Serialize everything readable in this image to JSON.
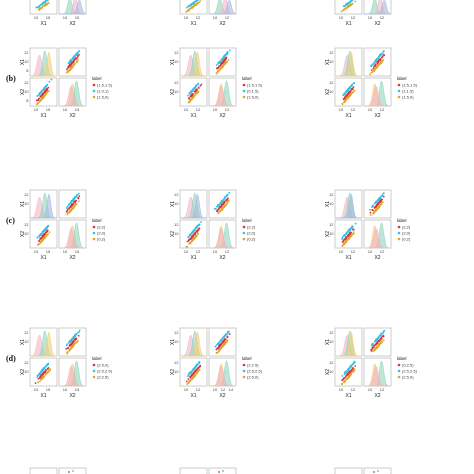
{
  "figure": {
    "colors": {
      "series1": "#f2a0b0",
      "series2": "#54c7a0",
      "series3": "#e6b53b",
      "point1": "#d8353f",
      "point2": "#33c0e8",
      "point3": "#e0a726",
      "dens1": "#f4b4c4",
      "dens2": "#8fd6bd",
      "dens3": "#f2cf7a",
      "dens4": "#a8b8e0"
    },
    "row_labels": [
      "(b)",
      "(c)",
      "(d)"
    ],
    "axis_var_labels": [
      "X1",
      "X2"
    ]
  },
  "chart_data": [
    {
      "type": "scatter",
      "row": "top-partial",
      "panels": [
        {
          "xlabel_left": "X1",
          "xlabel_right": "X2",
          "ticks_left": [
            "10",
            "15"
          ],
          "ticks_right": [
            "10",
            "15"
          ]
        },
        {
          "xlabel_left": "X1",
          "xlabel_right": "X2",
          "ticks_left": [
            "10",
            "12"
          ],
          "ticks_right": [
            "10",
            "12"
          ]
        },
        {
          "xlabel_left": "X1",
          "xlabel_right": "X2",
          "ticks_left": [
            "10",
            "12"
          ],
          "ticks_right": [
            "10",
            "12"
          ]
        }
      ]
    },
    {
      "type": "scatter",
      "row_label": "(b)",
      "legend_title": "label",
      "panels": [
        {
          "legend": [
            "(1.5,1.5)",
            "(1.0,1)",
            "(1.5,0)"
          ],
          "yticks": [
            "12",
            "10",
            "8"
          ],
          "xticks_left": [
            "10",
            "15"
          ],
          "xticks_right": [
            "10",
            "15"
          ],
          "xlabel_left": "X1",
          "xlabel_right": "X2"
        },
        {
          "legend": [
            "(1.5,1.5)",
            "(0.1.5)",
            "(1.5,0)"
          ],
          "yticks": [
            "12",
            "10"
          ],
          "xticks_left": [
            "10",
            "12"
          ],
          "xticks_right": [
            "10",
            "12"
          ],
          "xlabel_left": "X1",
          "xlabel_right": "X2"
        },
        {
          "legend": [
            "(1.5,1.5)",
            "(1,1.5)",
            "(1.5,0)"
          ],
          "yticks": [
            "12",
            "10"
          ],
          "xticks_left": [
            "10",
            "12"
          ],
          "xticks_right": [
            "10",
            "12"
          ],
          "xlabel_left": "X1",
          "xlabel_right": "X2"
        }
      ]
    },
    {
      "type": "scatter",
      "row_label": "(c)",
      "legend_title": "label",
      "panels": [
        {
          "legend": [
            "(2,2)",
            "(2,0)",
            "(0,2)"
          ],
          "yticks": [
            "12",
            "10"
          ],
          "xticks_left": [
            "10",
            "15"
          ],
          "xticks_right": [
            "10",
            "15"
          ],
          "xlabel_left": "X1",
          "xlabel_right": "X2"
        },
        {
          "legend": [
            "(2,2)",
            "(2,0)",
            "(0,2)"
          ],
          "yticks": [
            "12",
            "10"
          ],
          "xticks_left": [
            "10",
            "12"
          ],
          "xticks_right": [
            "10",
            "12"
          ],
          "xlabel_left": "X1",
          "xlabel_right": "X2"
        },
        {
          "legend": [
            "(2,2)",
            "(2,0)",
            "(0,2)"
          ],
          "yticks": [
            "12",
            "10"
          ],
          "xticks_left": [
            "10",
            "12"
          ],
          "xticks_right": [
            "10",
            "12"
          ],
          "xlabel_left": "X1",
          "xlabel_right": "X2"
        }
      ]
    },
    {
      "type": "scatter",
      "row_label": "(d)",
      "legend_title": "label",
      "panels": [
        {
          "legend": [
            "(2.5,0)",
            "(2.5,2.5)",
            "(2,2.5)"
          ],
          "yticks": [
            "12",
            "10"
          ],
          "xticks_left": [
            "10",
            "15"
          ],
          "xticks_right": [
            "10",
            "15"
          ],
          "xlabel_left": "X1",
          "xlabel_right": "X2"
        },
        {
          "legend": [
            "(2.2.5)",
            "(2.5,2.5)",
            "(2.5,0)"
          ],
          "yticks": [
            "12",
            "10"
          ],
          "xticks_left": [
            "10",
            "12"
          ],
          "xticks_right": [
            "10",
            "12",
            "14"
          ],
          "xlabel_left": "X1",
          "xlabel_right": "X2"
        },
        {
          "legend": [
            "(0,2.5)",
            "(2.5,2.5)",
            "(2.5,0)"
          ],
          "yticks": [
            "12",
            "10"
          ],
          "xticks_left": [
            "10",
            "12"
          ],
          "xticks_right": [
            "10",
            "12"
          ],
          "xlabel_left": "X1",
          "xlabel_right": "X2"
        }
      ]
    }
  ]
}
